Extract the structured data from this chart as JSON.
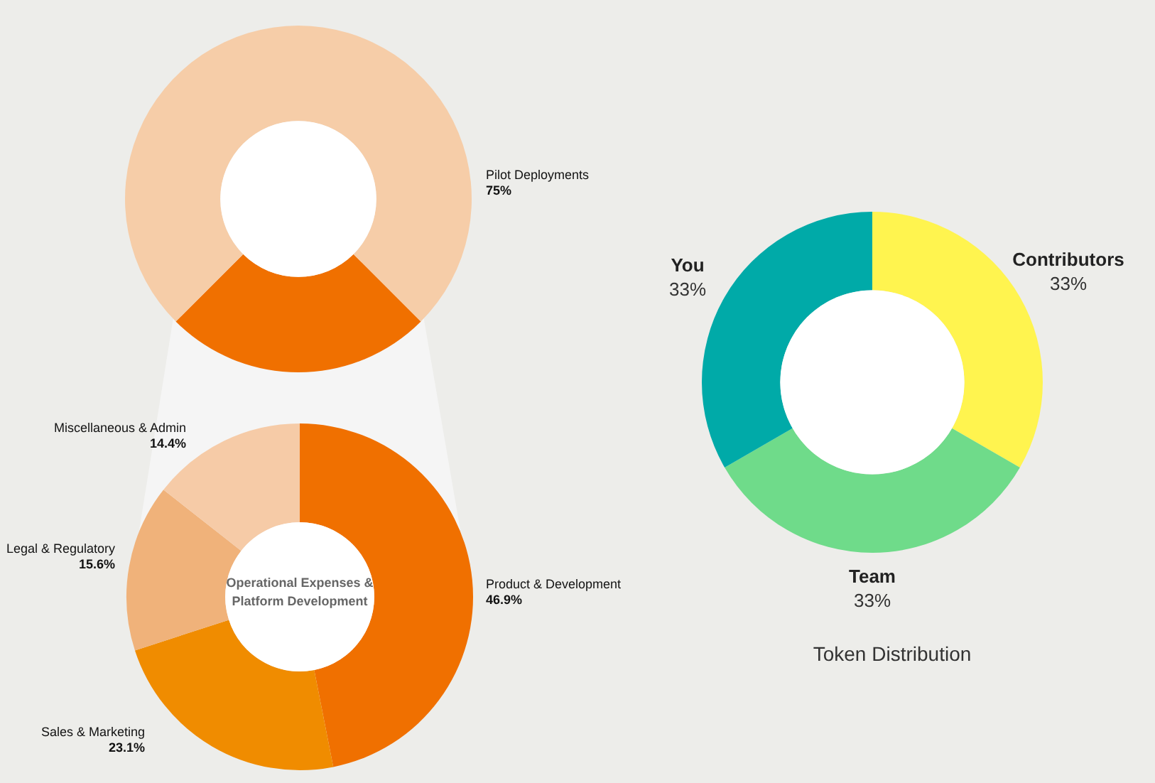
{
  "chart_data": [
    {
      "type": "donut",
      "categories": [
        null,
        "Pilot Deployments"
      ],
      "values": [
        25,
        75
      ],
      "colors": [
        "#f07000",
        "#f6cda8"
      ],
      "value_labels": [
        null,
        "75%"
      ]
    },
    {
      "type": "donut",
      "title": "Operational Expenses & Platform Development",
      "categories": [
        "Product & Development",
        "Sales & Marketing",
        "Legal & Regulatory",
        "Miscellaneous & Admin"
      ],
      "values": [
        46.9,
        23.1,
        15.6,
        14.4
      ],
      "colors": [
        "#f07000",
        "#f08c00",
        "#f0b27a",
        "#f6cba7"
      ],
      "value_labels": [
        "46.9%",
        "23.1%",
        "15.6%",
        "14.4%"
      ]
    },
    {
      "type": "donut",
      "title": "Token Distribution",
      "categories": [
        "Contributors",
        "Team",
        "You"
      ],
      "values": [
        33,
        33,
        33
      ],
      "colors": [
        "#fff44f",
        "#6fdb8a",
        "#00aaa8"
      ],
      "value_labels": [
        "33%",
        "33%",
        "33%"
      ]
    }
  ]
}
